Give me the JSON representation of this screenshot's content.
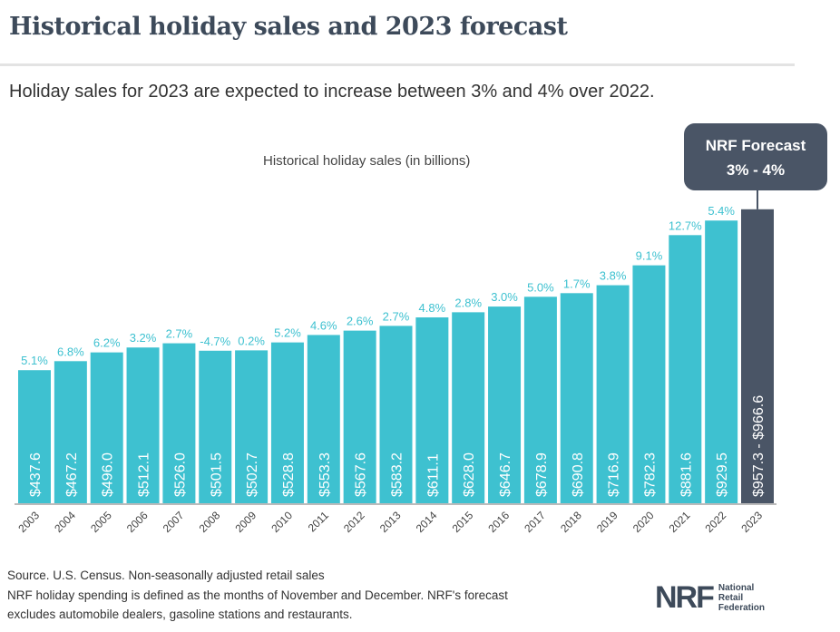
{
  "title": "Historical holiday sales and 2023 forecast",
  "subtitle": "Holiday sales for 2023 are expected to increase between 3% and 4% over 2022.",
  "forecast_box": {
    "line1": "NRF Forecast",
    "line2": "3% - 4%"
  },
  "footer": {
    "source": "Source. U.S. Census. Non-seasonally adjusted retail sales",
    "note1": "NRF holiday spending is defined as the months of November and December. NRF's forecast",
    "note2": "excludes automobile dealers, gasoline stations and restaurants.",
    "logo": "NRF",
    "logo_text": [
      "National",
      "Retail",
      "Federation"
    ]
  },
  "colors": {
    "bar": "#3ec1d0",
    "forecast_bar": "#4a5566",
    "growth_label": "#3ec1d0"
  },
  "chart_data": {
    "type": "bar",
    "title": "Historical holiday sales (in billions)",
    "categories": [
      "2003",
      "2004",
      "2005",
      "2006",
      "2007",
      "2008",
      "2009",
      "2010",
      "2011",
      "2012",
      "2013",
      "2014",
      "2015",
      "2016",
      "2017",
      "2018",
      "2019",
      "2020",
      "2021",
      "2022",
      "2023"
    ],
    "values": [
      437.6,
      467.2,
      496.0,
      512.1,
      526.0,
      501.5,
      502.7,
      528.8,
      553.3,
      567.6,
      583.2,
      611.1,
      628.0,
      646.7,
      678.9,
      690.8,
      716.9,
      782.3,
      881.6,
      929.5,
      966.6
    ],
    "value_labels": [
      "$437.6",
      "$467.2",
      "$496.0",
      "$512.1",
      "$526.0",
      "$501.5",
      "$502.7",
      "$528.8",
      "$553.3",
      "$567.6",
      "$583.2",
      "$611.1",
      "$628.0",
      "$646.7",
      "$678.9",
      "$690.8",
      "$716.9",
      "$782.3",
      "$881.6",
      "$929.5",
      "$957.3 - $966.6"
    ],
    "growth_labels": [
      "5.1%",
      "6.8%",
      "6.2%",
      "3.2%",
      "2.7%",
      "-4.7%",
      "0.2%",
      "5.2%",
      "4.6%",
      "2.6%",
      "2.7%",
      "4.8%",
      "2.8%",
      "3.0%",
      "5.0%",
      "1.7%",
      "3.8%",
      "9.1%",
      "12.7%",
      "5.4%",
      ""
    ],
    "forecast_range": [
      957.3,
      966.6
    ],
    "ylim": [
      0,
      1000
    ],
    "grid": false
  }
}
